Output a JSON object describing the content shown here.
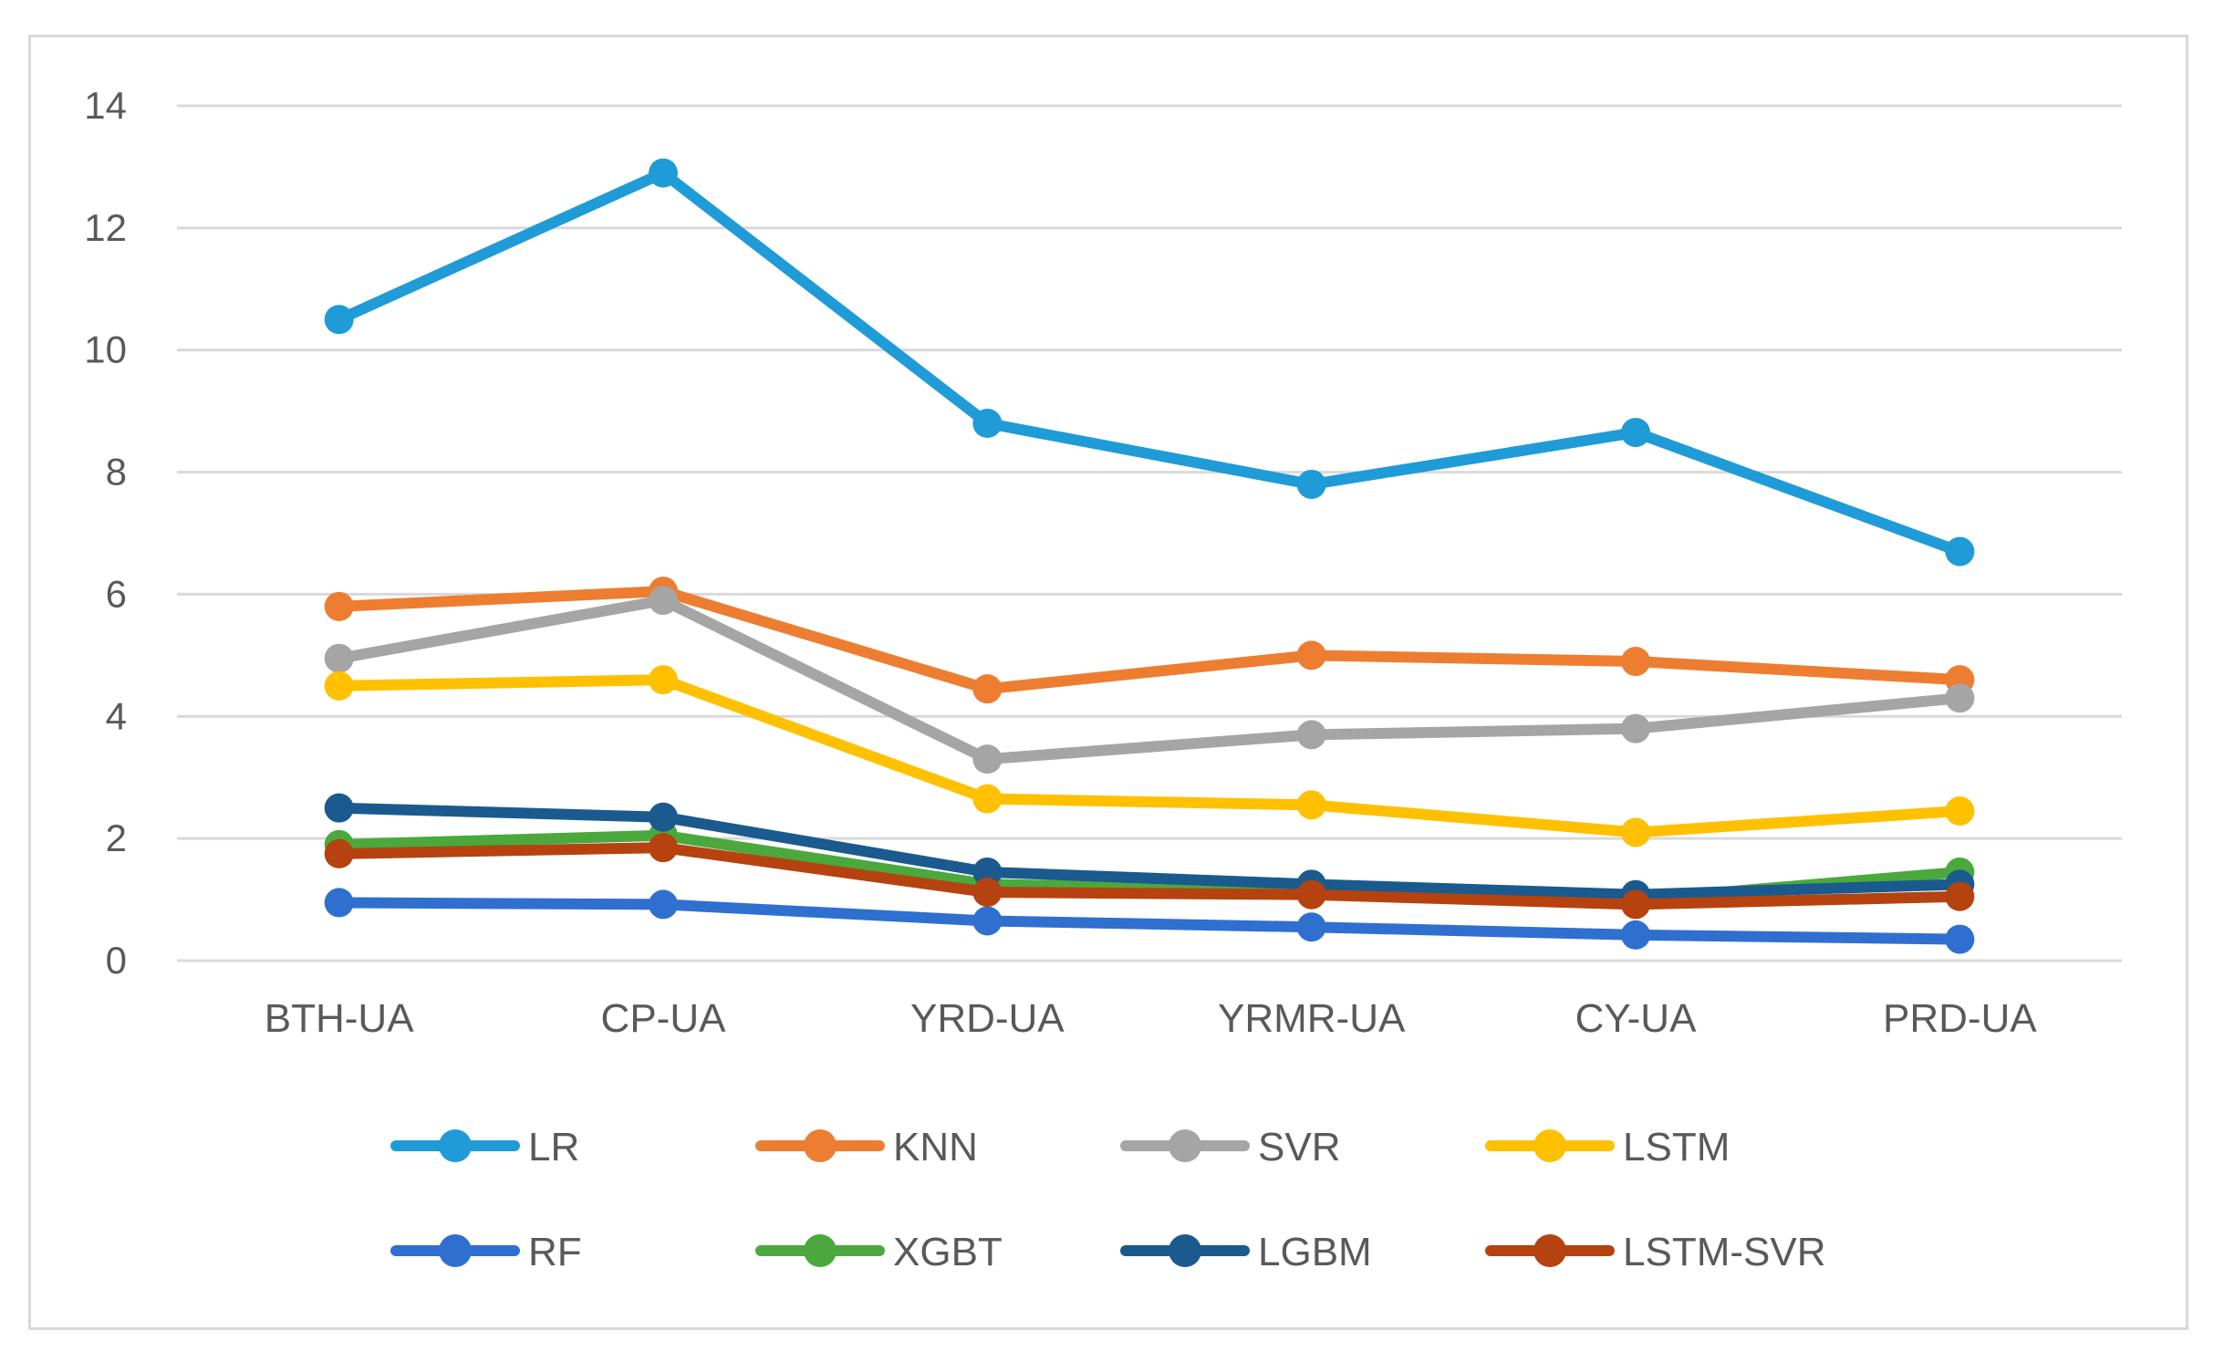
{
  "chart_data": {
    "type": "line",
    "title": "",
    "xlabel": "",
    "ylabel": "",
    "ylim": [
      0,
      14
    ],
    "yticks": [
      0,
      2,
      4,
      6,
      8,
      10,
      12,
      14
    ],
    "ytick_labels": [
      "0",
      "2",
      "4",
      "6",
      "8",
      "10",
      "12",
      "14"
    ],
    "grid": true,
    "legend_position": "bottom",
    "categories": [
      "BTH-UA",
      "CP-UA",
      "YRD-UA",
      "YRMR-UA",
      "CY-UA",
      "PRD-UA"
    ],
    "series": [
      {
        "name": "LR",
        "color": "#1f9bd7",
        "values": [
          10.5,
          12.9,
          8.8,
          7.8,
          8.65,
          6.7
        ]
      },
      {
        "name": "KNN",
        "color": "#ed7d31",
        "values": [
          5.8,
          6.05,
          4.45,
          5.0,
          4.9,
          4.6
        ]
      },
      {
        "name": "SVR",
        "color": "#a5a5a5",
        "values": [
          4.95,
          5.9,
          3.3,
          3.7,
          3.8,
          4.3
        ]
      },
      {
        "name": "LSTM",
        "color": "#ffc000",
        "values": [
          4.5,
          4.6,
          2.65,
          2.55,
          2.1,
          2.45
        ]
      },
      {
        "name": "RF",
        "color": "#2f6fd0",
        "values": [
          0.95,
          0.92,
          0.65,
          0.55,
          0.42,
          0.35
        ]
      },
      {
        "name": "XGBT",
        "color": "#4aa83c",
        "values": [
          1.9,
          2.05,
          1.25,
          1.15,
          1.0,
          1.45
        ]
      },
      {
        "name": "LGBM",
        "color": "#1a5a8e",
        "values": [
          2.5,
          2.35,
          1.45,
          1.25,
          1.08,
          1.25
        ]
      },
      {
        "name": "LSTM-SVR",
        "color": "#b5420f",
        "values": [
          1.75,
          1.85,
          1.12,
          1.08,
          0.92,
          1.05
        ]
      }
    ]
  }
}
